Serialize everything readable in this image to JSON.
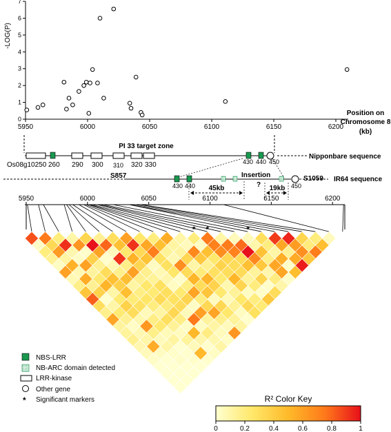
{
  "chart_data": [
    {
      "type": "scatter",
      "ylabel": "-LOG(P)",
      "xlabel_lines": [
        "Position on",
        "Chromosome 8",
        "(kb)"
      ],
      "xlim": [
        5950,
        6210
      ],
      "ylim": [
        0,
        7
      ],
      "x_ticks": [
        "5950",
        "6000",
        "6050",
        "6100",
        "6150",
        "6200"
      ],
      "y_ticks": [
        "0",
        "1",
        "2",
        "3",
        "4",
        "5",
        "6",
        "7"
      ],
      "points": [
        {
          "x": 5951,
          "y": 0.55
        },
        {
          "x": 5960,
          "y": 0.7
        },
        {
          "x": 5964,
          "y": 0.85
        },
        {
          "x": 5981,
          "y": 2.2
        },
        {
          "x": 5983,
          "y": 0.6
        },
        {
          "x": 5985,
          "y": 1.25
        },
        {
          "x": 5988,
          "y": 0.85
        },
        {
          "x": 5993,
          "y": 1.65
        },
        {
          "x": 5997,
          "y": 2.0
        },
        {
          "x": 5999,
          "y": 2.2
        },
        {
          "x": 6001,
          "y": 0.35
        },
        {
          "x": 6002,
          "y": 2.15
        },
        {
          "x": 6004,
          "y": 2.95
        },
        {
          "x": 6008,
          "y": 2.15
        },
        {
          "x": 6010,
          "y": 6.0
        },
        {
          "x": 6013,
          "y": 1.25
        },
        {
          "x": 6021,
          "y": 6.55
        },
        {
          "x": 6034,
          "y": 0.95
        },
        {
          "x": 6035,
          "y": 0.65
        },
        {
          "x": 6039,
          "y": 2.5
        },
        {
          "x": 6043,
          "y": 0.4
        },
        {
          "x": 6044,
          "y": 0.25
        },
        {
          "x": 6111,
          "y": 1.05
        },
        {
          "x": 6209,
          "y": 2.95
        }
      ]
    },
    {
      "type": "heatmap",
      "title": "R² Color Key",
      "x_ticks": [
        "5950",
        "6000",
        "6050",
        "6100",
        "6150",
        "6200"
      ],
      "color_key": {
        "stops": [
          "#ffffd0",
          "#ffe86a",
          "#ffba2a",
          "#ff7a1a",
          "#e8101a"
        ],
        "ticks": [
          "0",
          "0.2",
          "0.4",
          "0.6",
          "0.8",
          "1"
        ]
      },
      "n_markers": 24,
      "r2_adjacent": [
        0.85,
        0.75,
        0.2,
        0.1,
        0.35,
        0.15,
        0.3,
        0.6,
        0.25,
        0.2,
        0.55,
        0.1,
        0.2,
        0.75,
        0.1,
        0.05,
        0.05,
        0.3,
        0.9,
        0.95,
        0.35,
        0.2,
        0.05,
        0.6
      ],
      "significant_marker_indices": [
        12,
        13,
        16
      ]
    }
  ],
  "genes": {
    "target_zone_label": "PI 33 target zone",
    "nipponbare_label": "Nipponbare sequence",
    "ir64_label": "IR64 sequence",
    "insertion_label": "Insertion",
    "nip_genes": [
      "Os08g10250",
      "260",
      "290",
      "300",
      "310",
      "320",
      "330",
      "430",
      "440",
      "450"
    ],
    "ir64_left_marker": "S857",
    "ir64_right_marker": "S1059",
    "ir64_genes": [
      "430",
      "440",
      "450"
    ],
    "dist_45": "45kb",
    "dist_19": "19kb",
    "question": "?"
  },
  "legend": {
    "items": [
      {
        "label": "NBS-LRR",
        "icon": "nbs-lrr-square",
        "color": "#1a9850"
      },
      {
        "label": "NB-ARC domain detected",
        "icon": "nb-arc-hatched-square",
        "color": "#1a9850"
      },
      {
        "label": "LRR-kinase",
        "icon": "lrr-kinase-box"
      },
      {
        "label": "Other gene",
        "icon": "other-gene-circle"
      },
      {
        "label": "Significant markers",
        "icon": "asterisk"
      }
    ]
  }
}
